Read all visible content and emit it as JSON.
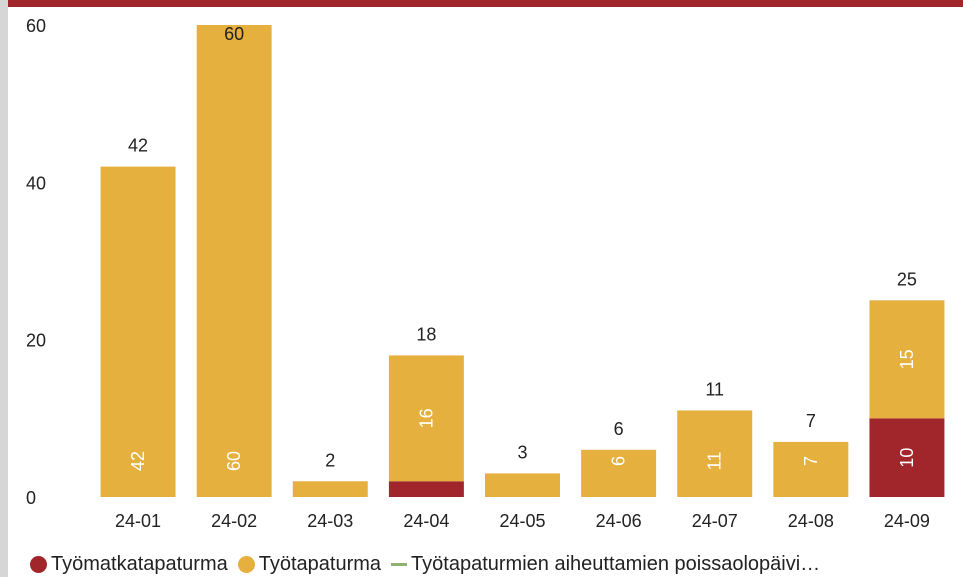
{
  "chart_data": {
    "type": "bar",
    "stacked": true,
    "categories": [
      "24-01",
      "24-02",
      "24-03",
      "24-04",
      "24-05",
      "24-06",
      "24-07",
      "24-08",
      "24-09"
    ],
    "series": [
      {
        "name": "Työmatkatapaturma",
        "color": "#a0262c",
        "values": [
          0,
          0,
          0,
          2,
          0,
          0,
          0,
          0,
          10
        ]
      },
      {
        "name": "Työtapaturma",
        "color": "#e6b03f",
        "values": [
          42,
          60,
          2,
          16,
          3,
          6,
          11,
          7,
          15
        ]
      }
    ],
    "inner_labels": {
      "Työmatkatapaturma": [
        "",
        "",
        "",
        "",
        "",
        "",
        "",
        "",
        "10"
      ],
      "Työtapaturma": [
        "42",
        "60",
        "",
        "16",
        "",
        "6",
        "11",
        "7",
        "15"
      ]
    },
    "totals": [
      42,
      60,
      2,
      18,
      3,
      6,
      11,
      7,
      25
    ],
    "total_labels": [
      "42",
      "60",
      "2",
      "18",
      "3",
      "6",
      "11",
      "7",
      "25"
    ],
    "yticks": [
      0,
      20,
      40,
      60
    ],
    "ytick_labels": [
      "0",
      "20",
      "40",
      "60"
    ],
    "ylim": [
      0,
      60
    ],
    "grid": false,
    "legend_position": "bottom"
  },
  "legend": {
    "items": [
      {
        "label": "Työmatkatapaturma",
        "color": "#a0262c",
        "shape": "circle"
      },
      {
        "label": "Työtapaturma",
        "color": "#e6b03f",
        "shape": "circle"
      },
      {
        "label": "Työtapaturmien aiheuttamien poissaolopäivi…",
        "color": "#8fb070",
        "shape": "line"
      }
    ]
  },
  "colors": {
    "accent": "#a0262c",
    "bar": "#e6b03f",
    "line": "#8fb070"
  }
}
